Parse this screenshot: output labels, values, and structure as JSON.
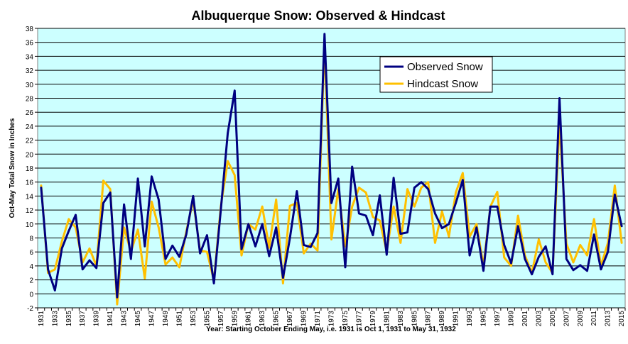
{
  "chart_data": {
    "type": "line",
    "title": "Albuquerque Snow: Observed & Hindcast",
    "xlabel": "Year: Starting October Ending May, i.e. 1931 is Oct 1, 1931 to May 31, 1932",
    "ylabel": "Oct-May Total Snow in Inches",
    "ylim": [
      -2,
      38
    ],
    "y_ticks": [
      -2,
      0,
      2,
      4,
      6,
      8,
      10,
      12,
      14,
      16,
      18,
      20,
      22,
      24,
      26,
      28,
      30,
      32,
      34,
      36,
      38
    ],
    "x_tick_labels": [
      "1931",
      "1933",
      "1935",
      "1937",
      "1939",
      "1941",
      "1943",
      "1945",
      "1947",
      "1949",
      "1951",
      "1953",
      "1955",
      "1957",
      "1959",
      "1961",
      "1963",
      "1965",
      "1967",
      "1969",
      "1971",
      "1973",
      "1975",
      "1977",
      "1979",
      "1981",
      "1983",
      "1985",
      "1987",
      "1989",
      "1991",
      "1993",
      "1995",
      "1997",
      "1999",
      "2001",
      "2003",
      "2005",
      "2007",
      "2009",
      "2011",
      "2013",
      "2015"
    ],
    "grid": "horizontal",
    "legend_position": "top-right",
    "plot_background": "#ccffff",
    "x": [
      1931,
      1932,
      1933,
      1934,
      1935,
      1936,
      1937,
      1938,
      1939,
      1940,
      1941,
      1942,
      1943,
      1944,
      1945,
      1946,
      1947,
      1948,
      1949,
      1950,
      1951,
      1952,
      1953,
      1954,
      1955,
      1956,
      1957,
      1958,
      1959,
      1960,
      1961,
      1962,
      1963,
      1964,
      1965,
      1966,
      1967,
      1968,
      1969,
      1970,
      1971,
      1972,
      1973,
      1974,
      1975,
      1976,
      1977,
      1978,
      1979,
      1980,
      1981,
      1982,
      1983,
      1984,
      1985,
      1986,
      1987,
      1988,
      1989,
      1990,
      1991,
      1992,
      1993,
      1994,
      1995,
      1996,
      1997,
      1998,
      1999,
      2000,
      2001,
      2002,
      2003,
      2004,
      2005,
      2006,
      2007,
      2008,
      2009,
      2010,
      2011,
      2012,
      2013,
      2014,
      2015
    ],
    "series": [
      {
        "name": "Observed Snow",
        "color": "#000080",
        "values": [
          15.2,
          3.5,
          0.5,
          6.5,
          9.0,
          11.3,
          3.5,
          4.8,
          3.7,
          13.0,
          14.5,
          -0.5,
          12.8,
          5.0,
          16.5,
          6.8,
          16.8,
          13.5,
          5.0,
          6.9,
          5.3,
          8.5,
          14.0,
          5.8,
          8.4,
          1.5,
          12.0,
          23.0,
          29.1,
          6.4,
          10.0,
          6.8,
          10.0,
          5.4,
          9.5,
          2.3,
          8.0,
          14.7,
          7.0,
          6.7,
          8.7,
          37.2,
          13.0,
          16.5,
          3.8,
          18.2,
          11.5,
          11.2,
          8.4,
          14.1,
          5.6,
          16.6,
          8.6,
          8.8,
          15.2,
          16.0,
          15.0,
          11.5,
          9.4,
          10.0,
          13.0,
          16.3,
          5.5,
          9.5,
          3.3,
          12.5,
          12.5,
          7.0,
          4.4,
          9.7,
          5.0,
          2.8,
          5.3,
          6.8,
          2.8,
          28.0,
          5.0,
          3.4,
          4.1,
          3.3,
          8.5,
          3.5,
          6.0,
          14.2,
          9.7
        ]
      },
      {
        "name": "Hindcast Snow",
        "color": "#ffc000",
        "values": [
          15.5,
          3.0,
          3.5,
          7.5,
          10.7,
          9.5,
          4.5,
          6.5,
          4.0,
          16.2,
          15.0,
          -1.5,
          9.5,
          6.0,
          9.2,
          2.2,
          13.2,
          9.5,
          4.2,
          5.2,
          3.8,
          8.9,
          13.4,
          6.2,
          6.0,
          1.9,
          12.5,
          19.0,
          17.0,
          5.5,
          10.0,
          9.2,
          12.5,
          6.6,
          13.5,
          1.5,
          12.6,
          13.0,
          5.8,
          7.2,
          6.2,
          36.0,
          7.8,
          15.0,
          6.8,
          12.5,
          15.2,
          14.5,
          11.0,
          10.5,
          6.0,
          12.5,
          7.3,
          15.0,
          12.5,
          15.2,
          16.0,
          7.3,
          11.8,
          8.2,
          14.5,
          17.3,
          8.2,
          10.0,
          4.0,
          12.5,
          14.6,
          5.2,
          4.0,
          11.2,
          5.5,
          3.0,
          7.8,
          4.5,
          3.0,
          24.5,
          7.2,
          4.5,
          7.0,
          5.5,
          10.7,
          4.0,
          7.3,
          15.5,
          7.3
        ]
      }
    ]
  }
}
